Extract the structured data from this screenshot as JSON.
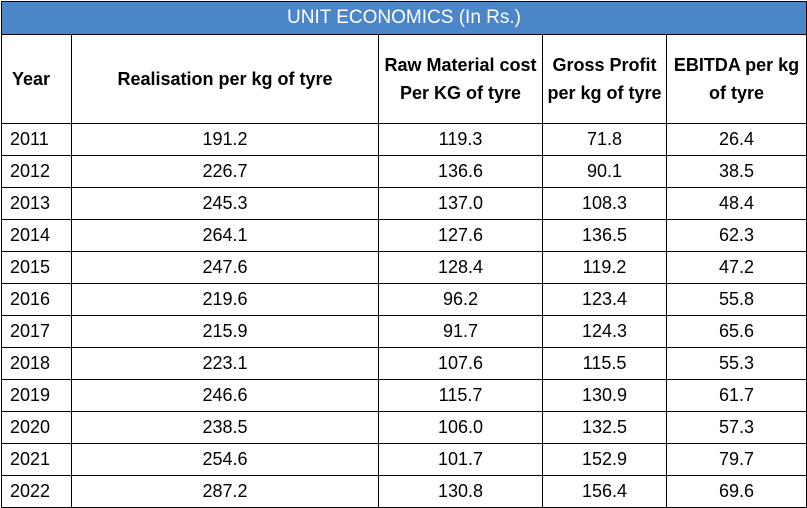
{
  "chart_data": {
    "type": "table",
    "title": "UNIT ECONOMICS (In Rs.)",
    "columns": [
      "Year",
      "Realisation per kg of tyre",
      "Raw Material cost Per KG of tyre",
      "Gross Profit per kg of tyre",
      "EBITDA per kg of tyre"
    ],
    "rows": [
      [
        "2011",
        "191.2",
        "119.3",
        "71.8",
        "26.4"
      ],
      [
        "2012",
        "226.7",
        "136.6",
        "90.1",
        "38.5"
      ],
      [
        "2013",
        "245.3",
        "137.0",
        "108.3",
        "48.4"
      ],
      [
        "2014",
        "264.1",
        "127.6",
        "136.5",
        "62.3"
      ],
      [
        "2015",
        "247.6",
        "128.4",
        "119.2",
        "47.2"
      ],
      [
        "2016",
        "219.6",
        "96.2",
        "123.4",
        "55.8"
      ],
      [
        "2017",
        "215.9",
        "91.7",
        "124.3",
        "65.6"
      ],
      [
        "2018",
        "223.1",
        "107.6",
        "115.5",
        "55.3"
      ],
      [
        "2019",
        "246.6",
        "115.7",
        "130.9",
        "61.7"
      ],
      [
        "2020",
        "238.5",
        "106.0",
        "132.5",
        "57.3"
      ],
      [
        "2021",
        "254.6",
        "101.7",
        "152.9",
        "79.7"
      ],
      [
        "2022",
        "287.2",
        "130.8",
        "156.4",
        "69.6"
      ]
    ],
    "header_color": "#4a86c8"
  }
}
